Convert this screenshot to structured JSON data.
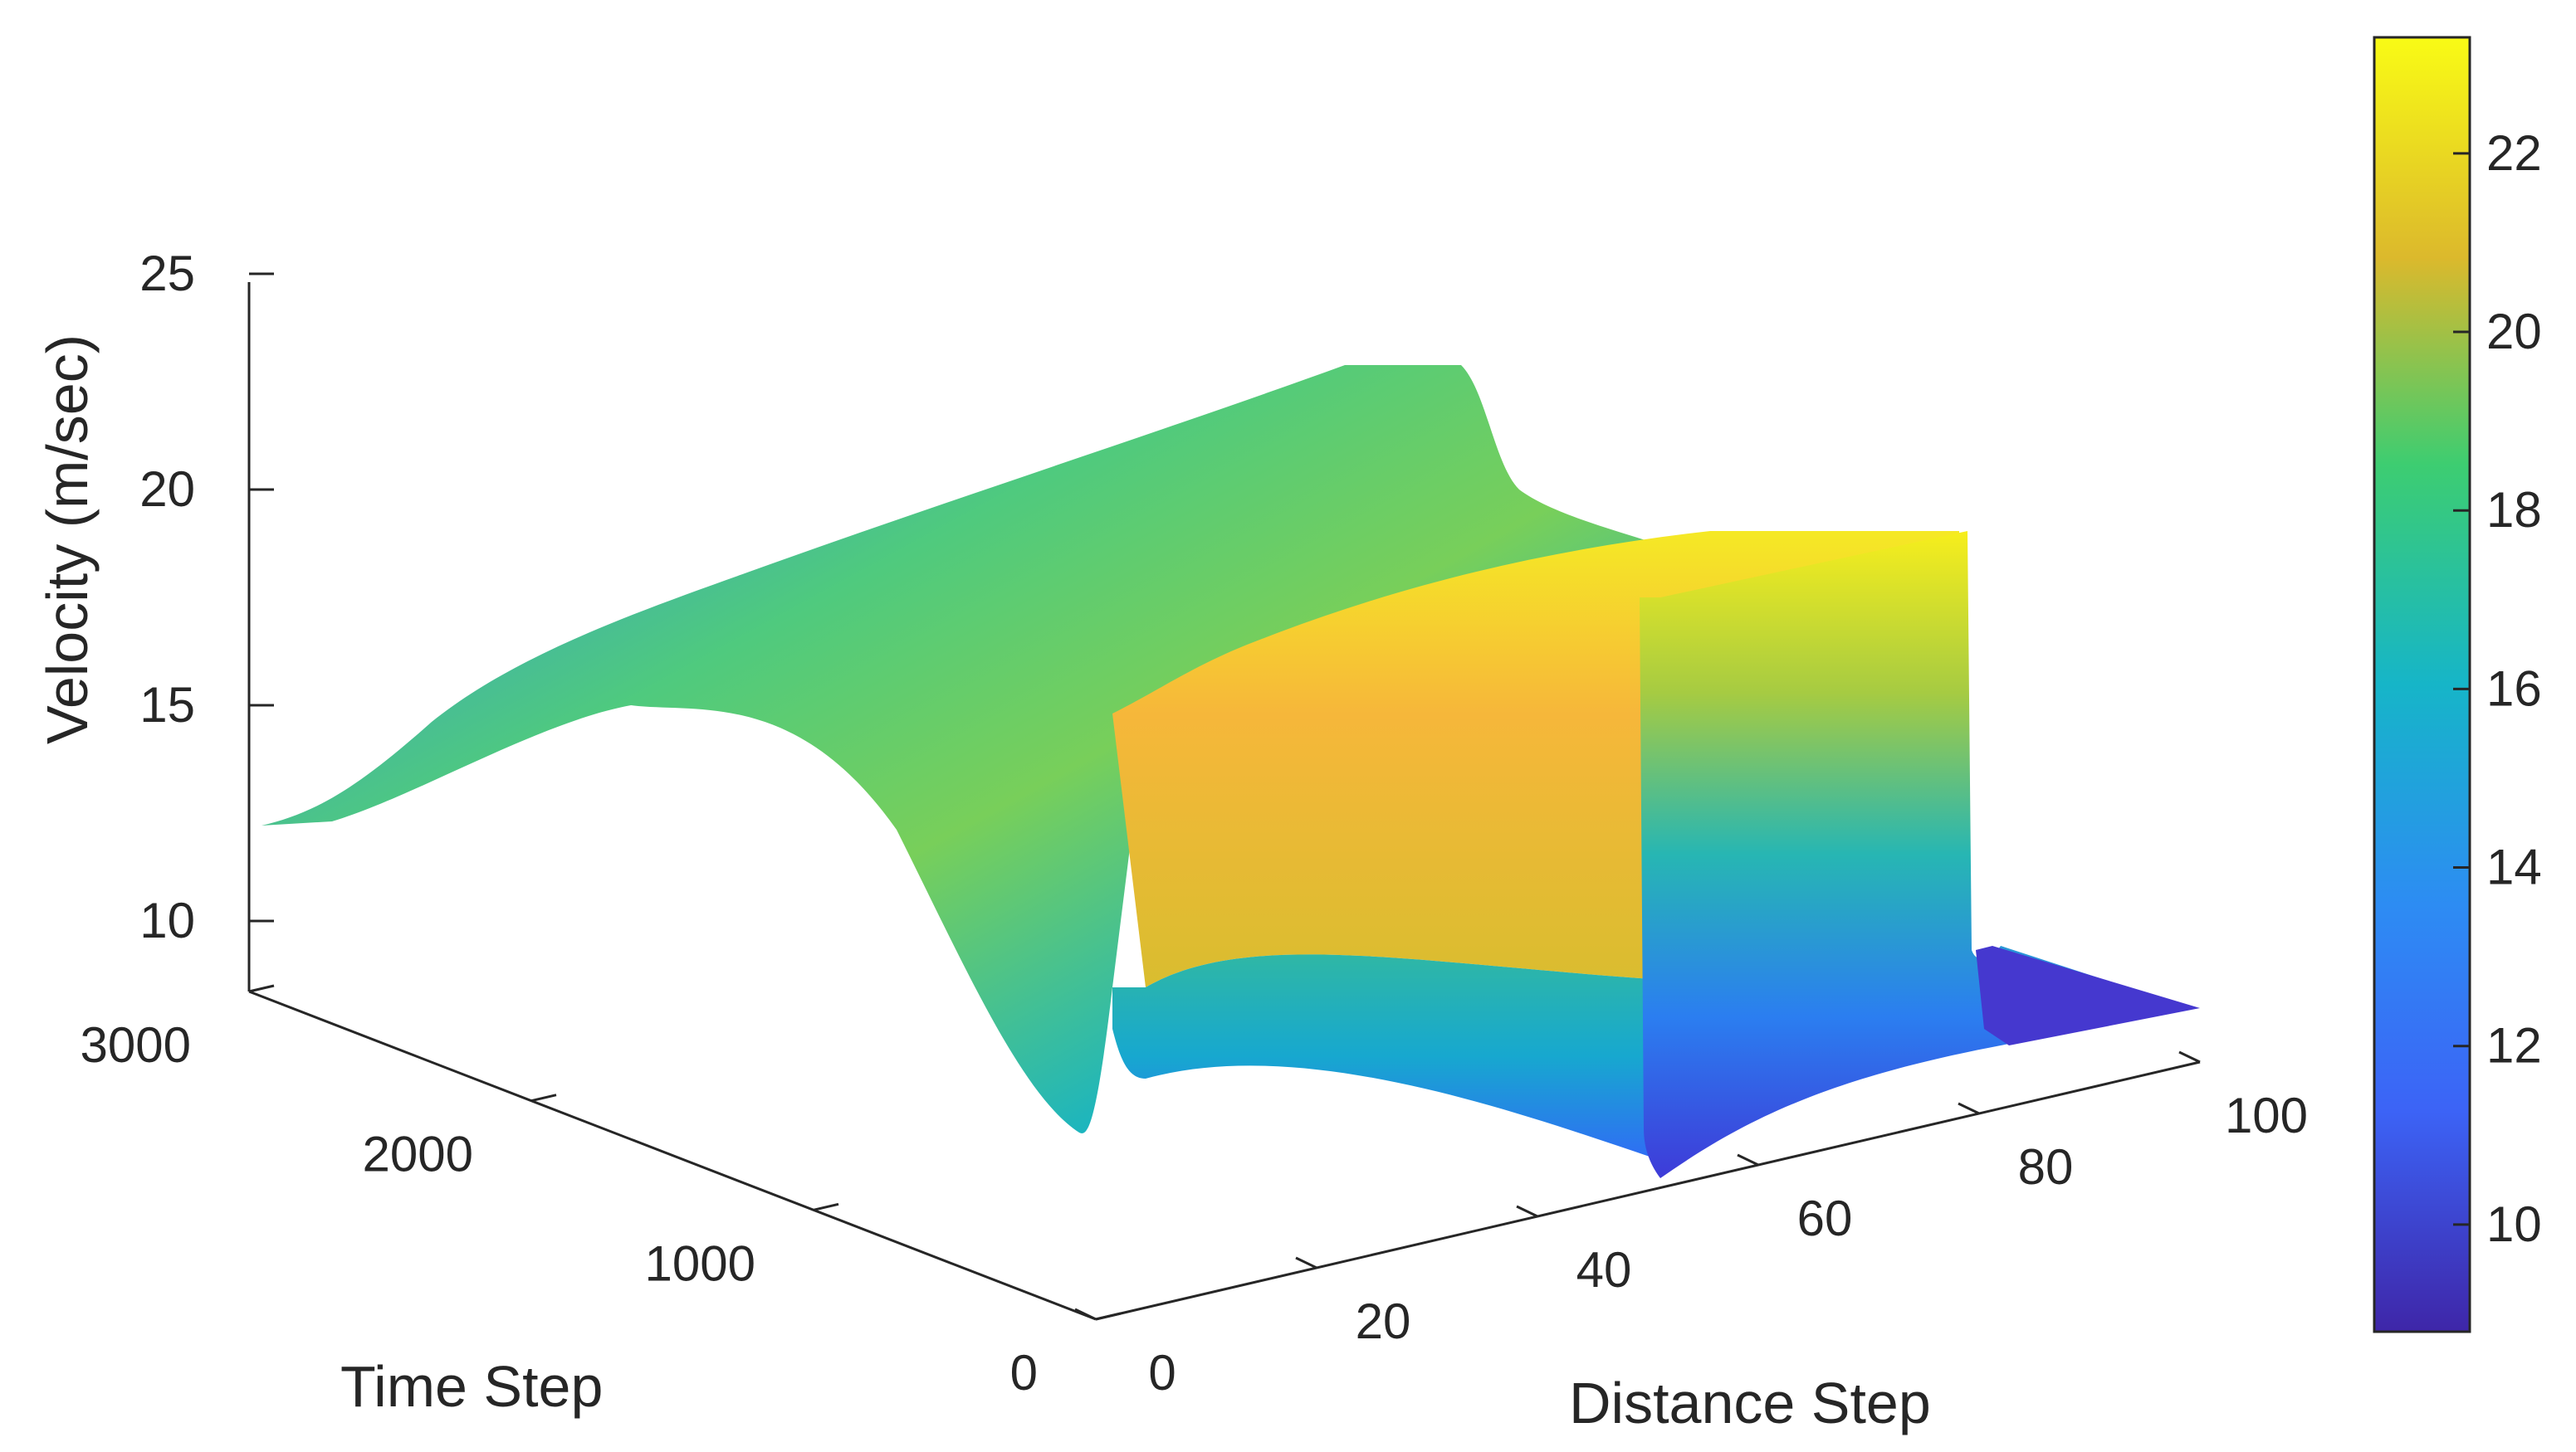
{
  "chart_data": {
    "type": "surface",
    "title": "",
    "xlabel": "Distance Step",
    "ylabel": "Time Step",
    "zlabel": "Velocity (m/sec)",
    "x_ticks": [
      0,
      20,
      40,
      60,
      80,
      100
    ],
    "y_ticks": [
      0,
      1000,
      2000,
      3000
    ],
    "z_ticks": [
      10,
      15,
      20,
      25
    ],
    "x_range": [
      0,
      100
    ],
    "y_range": [
      0,
      3000
    ],
    "z_range": [
      8.5,
      25
    ],
    "colormap": "parula",
    "colorbar": {
      "ticks": [
        10,
        12,
        14,
        16,
        18,
        20,
        22
      ],
      "range": [
        8.8,
        23.3
      ],
      "placement": "right"
    },
    "surface_profiles": [
      {
        "time_step": 3000,
        "distance": [
          0,
          5,
          10,
          15,
          20,
          25,
          30,
          35,
          40,
          45,
          50,
          55,
          60,
          65,
          70
        ],
        "velocity": [
          13.8,
          14.2,
          15.3,
          16.5,
          17.2,
          17.6,
          18.1,
          18.7,
          19.4,
          20.4,
          21.2,
          21.3,
          18.4,
          17.5,
          17.3
        ]
      },
      {
        "time_step": 2500,
        "distance": [
          0,
          10,
          20,
          30,
          40,
          45,
          50,
          55,
          60,
          70,
          80
        ],
        "velocity": [
          12.5,
          15.2,
          16.3,
          16.8,
          17.5,
          18.8,
          19.7,
          20.7,
          20.9,
          19.2,
          18.6
        ]
      },
      {
        "time_step": 2000,
        "distance": [
          0,
          10,
          20,
          30,
          40,
          45,
          50,
          55,
          60,
          70,
          80
        ],
        "velocity": [
          11.8,
          14.8,
          16.2,
          16.7,
          17.0,
          17.3,
          19.4,
          20.6,
          20.6,
          19.8,
          18.8
        ]
      },
      {
        "time_step": 1000,
        "distance": [
          0,
          10,
          20,
          30,
          40,
          45,
          50,
          55,
          60,
          70,
          80,
          90,
          100
        ],
        "velocity": [
          11.2,
          14.5,
          15.8,
          16.3,
          17.0,
          18.3,
          20.5,
          22.0,
          22.6,
          22.0,
          21.2,
          10.5,
          9.6
        ]
      },
      {
        "time_step": 0,
        "distance": [
          50,
          60,
          70,
          80,
          90,
          100
        ],
        "velocity": [
          22.9,
          22.6,
          22.2,
          21.8,
          10.4,
          9.8
        ]
      }
    ]
  }
}
